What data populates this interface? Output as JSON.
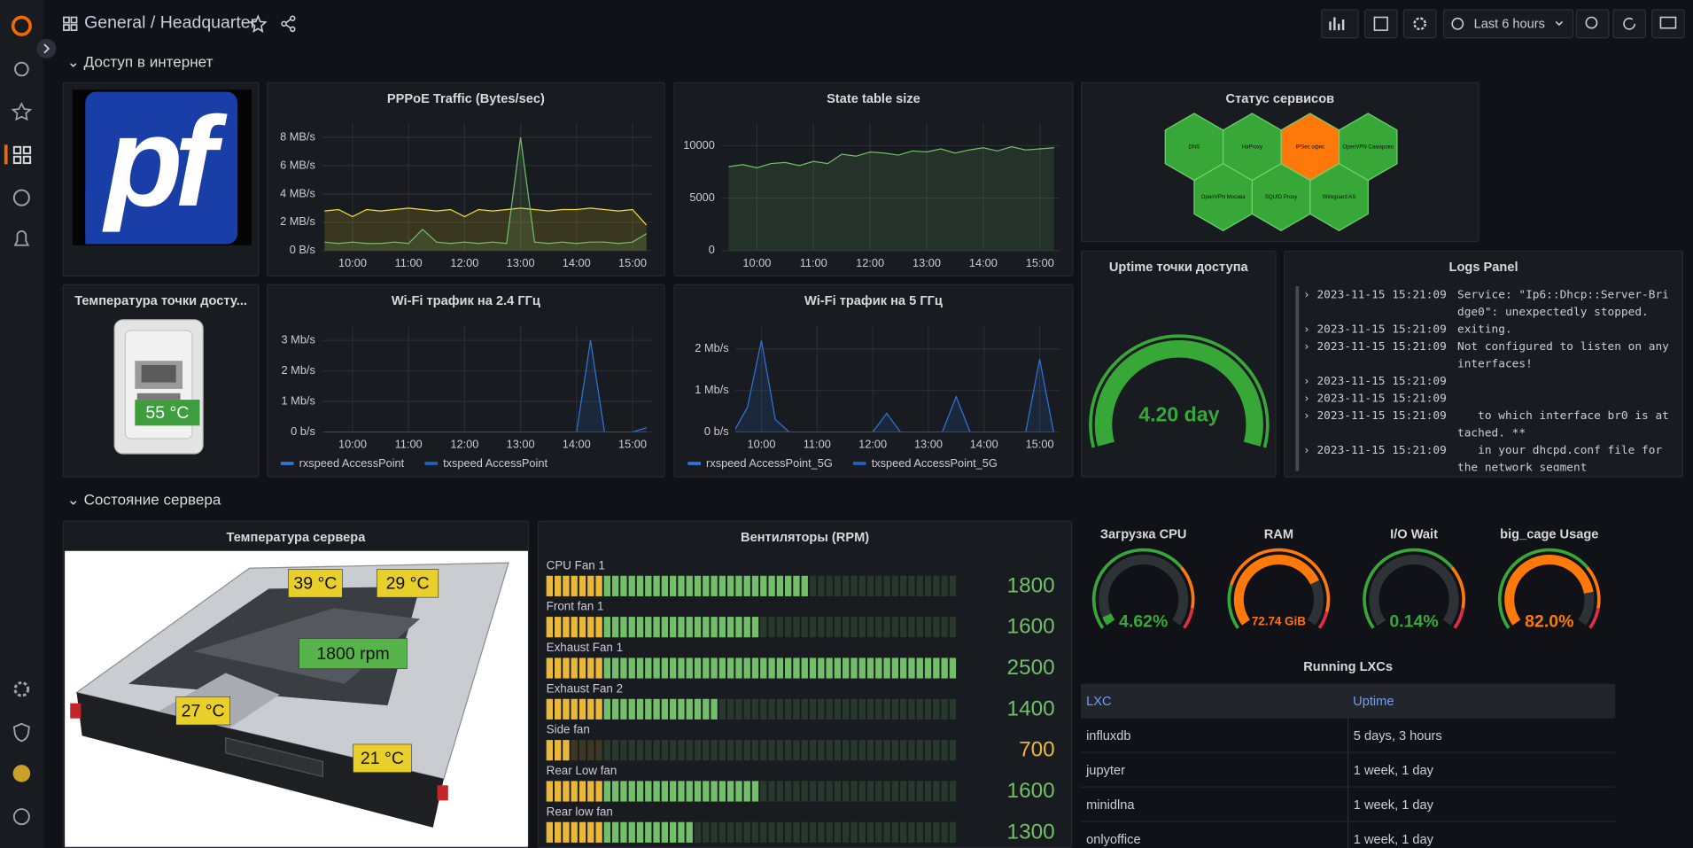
{
  "header": {
    "folder": "General",
    "separator": "/",
    "dashboard": "Headquarter",
    "time_range": "Last 6 hours"
  },
  "rows": [
    {
      "title": "Доступ в интернет"
    },
    {
      "title": "Состояние сервера"
    }
  ],
  "panels": {
    "logo": {
      "logo_text": "pf"
    },
    "pppoe": {
      "type": "line",
      "title": "PPPoE Traffic (Bytes/sec)",
      "xlim": [
        9.45,
        15.35
      ],
      "ylim": [
        0,
        9
      ],
      "x": [
        9.5,
        9.75,
        10,
        10.25,
        10.5,
        10.75,
        11,
        11.25,
        11.5,
        11.75,
        12,
        12.25,
        12.5,
        12.75,
        13,
        13.25,
        13.5,
        13.75,
        14,
        14.25,
        14.5,
        14.75,
        15,
        15.25
      ],
      "xticks": [
        {
          "value": 10,
          "label": "10:00"
        },
        {
          "value": 11,
          "label": "11:00"
        },
        {
          "value": 12,
          "label": "12:00"
        },
        {
          "value": 13,
          "label": "13:00"
        },
        {
          "value": 14,
          "label": "14:00"
        },
        {
          "value": 15,
          "label": "15:00"
        }
      ],
      "yticks": [
        {
          "value": 0,
          "label": "0 B/s"
        },
        {
          "value": 2,
          "label": "2 MB/s"
        },
        {
          "value": 4,
          "label": "4 MB/s"
        },
        {
          "value": 6,
          "label": "6 MB/s"
        },
        {
          "value": 8,
          "label": "8 MB/s"
        }
      ],
      "series": [
        {
          "color": "#fade2a",
          "values": [
            2.8,
            2.9,
            2.4,
            2.9,
            2.8,
            2.9,
            3.0,
            2.9,
            2.8,
            2.9,
            2.4,
            2.9,
            2.8,
            2.9,
            3.0,
            2.9,
            2.8,
            2.9,
            2.9,
            3.0,
            2.9,
            2.8,
            2.9,
            1.8
          ]
        },
        {
          "color": "#73bf69",
          "values": [
            0.6,
            0.5,
            0.6,
            0.5,
            0.5,
            0.6,
            0.5,
            1.5,
            0.6,
            0.5,
            0.6,
            0.5,
            0.6,
            0.5,
            8.0,
            0.6,
            0.5,
            0.6,
            0.5,
            0.6,
            0.6,
            0.5,
            0.6,
            1.2
          ]
        }
      ]
    },
    "state": {
      "type": "line",
      "title": "State table size",
      "xlim": [
        9.37,
        15.36
      ],
      "ylim": [
        0,
        12150
      ],
      "x": [
        9.5,
        9.75,
        10,
        10.25,
        10.5,
        10.75,
        11,
        11.25,
        11.5,
        11.75,
        12,
        12.25,
        12.5,
        12.75,
        13,
        13.25,
        13.5,
        13.75,
        14,
        14.25,
        14.5,
        14.75,
        15,
        15.25
      ],
      "xticks": [
        {
          "value": 10,
          "label": "10:00"
        },
        {
          "value": 11,
          "label": "11:00"
        },
        {
          "value": 12,
          "label": "12:00"
        },
        {
          "value": 13,
          "label": "13:00"
        },
        {
          "value": 14,
          "label": "14:00"
        },
        {
          "value": 15,
          "label": "15:00"
        }
      ],
      "yticks": [
        0,
        5000,
        10000
      ],
      "series": [
        {
          "color": "#73bf69",
          "values": [
            8000,
            8200,
            7900,
            8300,
            8400,
            8100,
            8500,
            8300,
            9200,
            9000,
            9400,
            9300,
            9100,
            9500,
            9400,
            9700,
            9300,
            9600,
            9800,
            9500,
            9900,
            9600,
            9700,
            9800
          ]
        }
      ]
    },
    "status": {
      "type": "honeycomb",
      "title": "Статус сервисов",
      "cells": [
        {
          "label": "DNS",
          "color": "#37a837"
        },
        {
          "label": "HaProxy",
          "color": "#37a837"
        },
        {
          "label": "IPSec офис",
          "color": "#ff780a"
        },
        {
          "label": "OpenVPN Самарово",
          "color": "#37a837"
        },
        {
          "label": "OpenVPN Москва",
          "color": "#37a837"
        },
        {
          "label": "SQUID Proxy",
          "color": "#37a837"
        },
        {
          "label": "Wireguard AS",
          "color": "#37a837"
        }
      ]
    },
    "uptime": {
      "type": "gauge",
      "title": "Uptime точки доступа",
      "value": 4.2,
      "value_label": "4.20 day",
      "min": 0,
      "max": 4.2,
      "color": "#37a837"
    },
    "logs": {
      "title": "Logs Panel",
      "entries": [
        {
          "time": "2023-11-15 15:21:09",
          "message": "Service: \"Ip6::Dhcp::Server-Bridge0\": unexpectedly stopped."
        },
        {
          "time": "2023-11-15 15:21:09",
          "message": "exiting."
        },
        {
          "time": "2023-11-15 15:21:09",
          "message": "Not configured to listen on any interfaces!"
        },
        {
          "time": "2023-11-15 15:21:09"
        },
        {
          "time": "2023-11-15 15:21:09"
        },
        {
          "time": "2023-11-15 15:21:09",
          "message": "   to which interface br0 is attached. **"
        },
        {
          "time": "2023-11-15 15:21:09",
          "message": "   in your dhcpd.conf file for the network segment"
        }
      ]
    },
    "ap_temp": {
      "title": "Температура точки досту...",
      "value": 55,
      "value_label": "55 °C",
      "color": "#3e9e3e"
    },
    "wifi24": {
      "type": "line",
      "title": "Wi-Fi трафик на 2.4 ГГц",
      "xlim": [
        9.45,
        15.35
      ],
      "ylim": [
        0,
        3.5
      ],
      "x": [
        9.5,
        9.75,
        10,
        10.25,
        10.5,
        10.75,
        11,
        11.25,
        11.5,
        11.75,
        12,
        12.25,
        12.5,
        12.75,
        13,
        13.25,
        13.5,
        13.75,
        14,
        14.25,
        14.5,
        14.75,
        15,
        15.25
      ],
      "xticks": [
        {
          "value": 10,
          "label": "10:00"
        },
        {
          "value": 11,
          "label": "11:00"
        },
        {
          "value": 12,
          "label": "12:00"
        },
        {
          "value": 13,
          "label": "13:00"
        },
        {
          "value": 14,
          "label": "14:00"
        },
        {
          "value": 15,
          "label": "15:00"
        }
      ],
      "yticks": [
        {
          "value": 0,
          "label": "0 b/s"
        },
        {
          "value": 1,
          "label": "1 Mb/s"
        },
        {
          "value": 2,
          "label": "2 Mb/s"
        },
        {
          "value": 3,
          "label": "3 Mb/s"
        }
      ],
      "series": [
        {
          "name": "rxspeed AccessPoint",
          "color": "#3274d9",
          "values": [
            0,
            0,
            0,
            0,
            0,
            0,
            0,
            0,
            0,
            0,
            0,
            0,
            0,
            0,
            0,
            0,
            0,
            0,
            0,
            3.0,
            0,
            0,
            0,
            0.15
          ]
        },
        {
          "name": "txspeed AccessPoint",
          "color": "#1f60c4",
          "values": [
            0,
            0,
            0,
            0,
            0,
            0,
            0,
            0,
            0,
            0,
            0,
            0,
            0,
            0,
            0,
            0,
            0,
            0,
            0,
            0,
            0,
            0,
            0,
            0
          ]
        }
      ]
    },
    "wifi5": {
      "type": "line",
      "title": "Wi-Fi трафик на 5 ГГц",
      "xlim": [
        9.53,
        15.37
      ],
      "ylim": [
        0,
        2.57
      ],
      "x": [
        9.5,
        9.75,
        10,
        10.25,
        10.5,
        10.75,
        11,
        11.25,
        11.5,
        11.75,
        12,
        12.25,
        12.5,
        12.75,
        13,
        13.25,
        13.5,
        13.75,
        14,
        14.25,
        14.5,
        14.75,
        15,
        15.25
      ],
      "xticks": [
        {
          "value": 10,
          "label": "10:00"
        },
        {
          "value": 11,
          "label": "11:00"
        },
        {
          "value": 12,
          "label": "12:00"
        },
        {
          "value": 13,
          "label": "13:00"
        },
        {
          "value": 14,
          "label": "14:00"
        },
        {
          "value": 15,
          "label": "15:00"
        }
      ],
      "yticks": [
        {
          "value": 0,
          "label": "0 b/s"
        },
        {
          "value": 1,
          "label": "1 Mb/s"
        },
        {
          "value": 2,
          "label": "2 Mb/s"
        }
      ],
      "series": [
        {
          "name": "rxspeed AccessPoint_5G",
          "color": "#3274d9",
          "values": [
            0,
            0.6,
            2.2,
            0.3,
            0,
            0,
            0,
            0,
            0,
            0,
            0,
            0.45,
            0,
            0,
            0,
            0,
            0.85,
            0,
            0,
            0,
            0,
            0,
            1.75,
            0
          ]
        },
        {
          "name": "txspeed AccessPoint_5G",
          "color": "#1f60c4",
          "values": [
            0,
            0,
            0,
            0,
            0,
            0,
            0,
            0,
            0,
            0,
            0,
            0,
            0,
            0,
            0,
            0,
            0,
            0,
            0,
            0,
            0,
            0,
            0,
            0
          ]
        }
      ]
    },
    "server_temp": {
      "title": "Температура сервера",
      "values": [
        39,
        29,
        1800,
        27,
        21
      ],
      "value_labels": [
        "39 °C",
        "29 °C",
        "1800 rpm",
        "27 °C",
        "21 °C"
      ],
      "colors": [
        "#e8cf2a",
        "#e8cf2a",
        "#56b44b",
        "#e8cf2a",
        "#e8cf2a"
      ]
    },
    "fans": {
      "type": "bargauge",
      "title": "Вентиляторы (RPM)",
      "min": 600,
      "max": 2500,
      "threshold": 900,
      "base_color": "#eab839",
      "above_color": "#73bf69",
      "categories": [
        "CPU Fan 1",
        "Front fan 1",
        "Exhaust Fan 1",
        "Exhaust Fan 2",
        "Side fan",
        "Rear Low fan",
        "Rear low fan"
      ],
      "values": [
        1800,
        1600,
        2500,
        1400,
        700,
        1600,
        1300
      ]
    },
    "gauges": [
      {
        "type": "gauge",
        "title": "Загрузка CPU",
        "value": 4.62,
        "value_label": "4.62%",
        "min": 0,
        "max": 100,
        "base_color": "#37a837",
        "thresholds": [
          {
            "value": 70,
            "color": "#ff780a"
          },
          {
            "value": 90,
            "color": "#e02f44"
          }
        ]
      },
      {
        "type": "gauge",
        "title": "RAM",
        "value": 72.74,
        "value_label": "72.74 GiB",
        "min": 0,
        "max": 96,
        "base_color": "#37a837",
        "thresholds": [
          {
            "value": 20,
            "color": "#ff780a"
          },
          {
            "value": 88,
            "color": "#e02f44"
          }
        ]
      },
      {
        "type": "gauge",
        "title": "I/O Wait",
        "value": 0.14,
        "value_label": "0.14%",
        "min": 0,
        "max": 100,
        "base_color": "#37a837",
        "thresholds": [
          {
            "value": 70,
            "color": "#ff780a"
          },
          {
            "value": 90,
            "color": "#e02f44"
          }
        ]
      },
      {
        "type": "gauge",
        "title": "big_cage Usage",
        "value": 82.0,
        "value_label": "82.0%",
        "min": 0,
        "max": 100,
        "base_color": "#37a837",
        "thresholds": [
          {
            "value": 70,
            "color": "#ff780a"
          },
          {
            "value": 90,
            "color": "#e02f44"
          }
        ]
      }
    ],
    "lxc": {
      "title": "Running LXCs",
      "columns": [
        "LXC",
        "Uptime"
      ],
      "rows": [
        [
          "influxdb",
          "5 days, 3 hours"
        ],
        [
          "jupyter",
          "1 week, 1 day"
        ],
        [
          "minidlna",
          "1 week, 1 day"
        ],
        [
          "onlyoffice",
          "1 week, 1 day"
        ]
      ]
    }
  }
}
